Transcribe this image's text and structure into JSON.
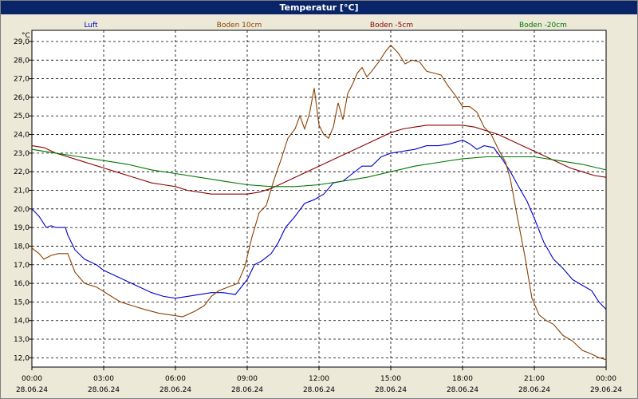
{
  "window": {
    "title": "Temperatur [°C]"
  },
  "chart_data": {
    "type": "line",
    "title": "Temperatur [°C]",
    "ylabel": "°C",
    "xlabel": "",
    "ylim": [
      11.5,
      29.6
    ],
    "xlim": [
      0,
      24
    ],
    "grid": true,
    "legend_position": "top",
    "y_ticks": [
      "29,0",
      "28,0",
      "27,0",
      "26,0",
      "25,0",
      "24,0",
      "23,0",
      "22,0",
      "21,0",
      "20,0",
      "19,0",
      "18,0",
      "17,0",
      "16,0",
      "15,0",
      "14,0",
      "13,0",
      "12,0"
    ],
    "y_tick_values": [
      29,
      28,
      27,
      26,
      25,
      24,
      23,
      22,
      21,
      20,
      19,
      18,
      17,
      16,
      15,
      14,
      13,
      12
    ],
    "x_ticks": [
      {
        "time": "00:00",
        "date": "28.06.24",
        "h": 0
      },
      {
        "time": "03:00",
        "date": "28.06.24",
        "h": 3
      },
      {
        "time": "06:00",
        "date": "28.06.24",
        "h": 6
      },
      {
        "time": "09:00",
        "date": "28.06.24",
        "h": 9
      },
      {
        "time": "12:00",
        "date": "28.06.24",
        "h": 12
      },
      {
        "time": "15:00",
        "date": "28.06.24",
        "h": 15
      },
      {
        "time": "18:00",
        "date": "28.06.24",
        "h": 18
      },
      {
        "time": "21:00",
        "date": "28.06.24",
        "h": 21
      },
      {
        "time": "00:00",
        "date": "29.06.24",
        "h": 24
      }
    ],
    "series": [
      {
        "name": "Luft",
        "color": "#0000cc",
        "points": [
          [
            0,
            20.0
          ],
          [
            0.3,
            19.6
          ],
          [
            0.6,
            19.0
          ],
          [
            0.8,
            19.1
          ],
          [
            1.0,
            19.0
          ],
          [
            1.4,
            19.0
          ],
          [
            1.5,
            18.6
          ],
          [
            1.8,
            17.8
          ],
          [
            2.2,
            17.3
          ],
          [
            2.7,
            17.0
          ],
          [
            3.0,
            16.7
          ],
          [
            3.5,
            16.4
          ],
          [
            4.0,
            16.1
          ],
          [
            4.5,
            15.8
          ],
          [
            5.0,
            15.5
          ],
          [
            5.5,
            15.3
          ],
          [
            6.0,
            15.2
          ],
          [
            6.5,
            15.3
          ],
          [
            7.0,
            15.4
          ],
          [
            7.5,
            15.5
          ],
          [
            8.0,
            15.5
          ],
          [
            8.5,
            15.4
          ],
          [
            9.0,
            16.2
          ],
          [
            9.3,
            17.0
          ],
          [
            9.6,
            17.2
          ],
          [
            10.0,
            17.6
          ],
          [
            10.3,
            18.2
          ],
          [
            10.6,
            19.0
          ],
          [
            11.0,
            19.6
          ],
          [
            11.4,
            20.3
          ],
          [
            11.8,
            20.5
          ],
          [
            12.2,
            20.8
          ],
          [
            12.6,
            21.4
          ],
          [
            13.0,
            21.5
          ],
          [
            13.4,
            21.9
          ],
          [
            13.8,
            22.3
          ],
          [
            14.2,
            22.3
          ],
          [
            14.6,
            22.8
          ],
          [
            15.0,
            23.0
          ],
          [
            15.5,
            23.1
          ],
          [
            16.0,
            23.2
          ],
          [
            16.5,
            23.4
          ],
          [
            17.0,
            23.4
          ],
          [
            17.5,
            23.5
          ],
          [
            18.0,
            23.7
          ],
          [
            18.3,
            23.5
          ],
          [
            18.6,
            23.2
          ],
          [
            18.9,
            23.4
          ],
          [
            19.3,
            23.3
          ],
          [
            19.7,
            22.6
          ],
          [
            20.0,
            22.0
          ],
          [
            20.3,
            21.3
          ],
          [
            20.7,
            20.4
          ],
          [
            21.0,
            19.5
          ],
          [
            21.4,
            18.2
          ],
          [
            21.8,
            17.3
          ],
          [
            22.2,
            16.8
          ],
          [
            22.6,
            16.2
          ],
          [
            23.0,
            15.9
          ],
          [
            23.4,
            15.6
          ],
          [
            23.7,
            15.0
          ],
          [
            24.0,
            14.6
          ]
        ]
      },
      {
        "name": "Boden 10cm",
        "color": "#8b4000",
        "points": [
          [
            0,
            17.9
          ],
          [
            0.3,
            17.6
          ],
          [
            0.5,
            17.3
          ],
          [
            0.8,
            17.5
          ],
          [
            1.1,
            17.6
          ],
          [
            1.5,
            17.6
          ],
          [
            1.8,
            16.6
          ],
          [
            2.2,
            16.0
          ],
          [
            2.7,
            15.8
          ],
          [
            3.2,
            15.4
          ],
          [
            3.7,
            15.0
          ],
          [
            4.2,
            14.8
          ],
          [
            4.7,
            14.6
          ],
          [
            5.3,
            14.4
          ],
          [
            5.8,
            14.3
          ],
          [
            6.3,
            14.2
          ],
          [
            6.8,
            14.5
          ],
          [
            7.2,
            14.8
          ],
          [
            7.5,
            15.3
          ],
          [
            7.8,
            15.6
          ],
          [
            8.2,
            15.8
          ],
          [
            8.6,
            16.0
          ],
          [
            8.9,
            16.9
          ],
          [
            9.2,
            18.5
          ],
          [
            9.5,
            19.8
          ],
          [
            9.8,
            20.2
          ],
          [
            10.1,
            21.5
          ],
          [
            10.4,
            22.6
          ],
          [
            10.7,
            23.8
          ],
          [
            11.0,
            24.3
          ],
          [
            11.2,
            25.0
          ],
          [
            11.4,
            24.3
          ],
          [
            11.6,
            25.1
          ],
          [
            11.8,
            26.5
          ],
          [
            12.0,
            24.5
          ],
          [
            12.2,
            24.0
          ],
          [
            12.4,
            23.8
          ],
          [
            12.6,
            24.4
          ],
          [
            12.8,
            25.7
          ],
          [
            13.0,
            24.8
          ],
          [
            13.2,
            26.2
          ],
          [
            13.4,
            26.7
          ],
          [
            13.6,
            27.3
          ],
          [
            13.8,
            27.6
          ],
          [
            14.0,
            27.1
          ],
          [
            14.2,
            27.4
          ],
          [
            14.5,
            27.9
          ],
          [
            14.8,
            28.5
          ],
          [
            15.0,
            28.8
          ],
          [
            15.3,
            28.4
          ],
          [
            15.6,
            27.8
          ],
          [
            15.9,
            28.0
          ],
          [
            16.2,
            27.9
          ],
          [
            16.5,
            27.4
          ],
          [
            16.8,
            27.3
          ],
          [
            17.1,
            27.2
          ],
          [
            17.4,
            26.6
          ],
          [
            17.7,
            26.1
          ],
          [
            18.0,
            25.5
          ],
          [
            18.3,
            25.5
          ],
          [
            18.6,
            25.2
          ],
          [
            18.9,
            24.4
          ],
          [
            19.2,
            24.0
          ],
          [
            19.5,
            23.2
          ],
          [
            19.8,
            22.5
          ],
          [
            20.0,
            21.6
          ],
          [
            20.3,
            19.5
          ],
          [
            20.6,
            17.5
          ],
          [
            20.9,
            15.2
          ],
          [
            21.2,
            14.3
          ],
          [
            21.5,
            14.0
          ],
          [
            21.8,
            13.8
          ],
          [
            22.2,
            13.2
          ],
          [
            22.6,
            12.9
          ],
          [
            23.0,
            12.4
          ],
          [
            23.4,
            12.2
          ],
          [
            23.7,
            12.0
          ],
          [
            24.0,
            11.9
          ]
        ]
      },
      {
        "name": "Boden -5cm",
        "color": "#8b0000",
        "points": [
          [
            0,
            23.4
          ],
          [
            0.5,
            23.3
          ],
          [
            1.0,
            23.0
          ],
          [
            1.5,
            22.8
          ],
          [
            2.0,
            22.6
          ],
          [
            2.5,
            22.4
          ],
          [
            3.0,
            22.2
          ],
          [
            3.5,
            22.0
          ],
          [
            4.0,
            21.8
          ],
          [
            4.5,
            21.6
          ],
          [
            5.0,
            21.4
          ],
          [
            5.5,
            21.3
          ],
          [
            6.0,
            21.2
          ],
          [
            6.5,
            21.0
          ],
          [
            7.0,
            20.9
          ],
          [
            7.5,
            20.8
          ],
          [
            8.0,
            20.8
          ],
          [
            8.5,
            20.8
          ],
          [
            9.0,
            20.8
          ],
          [
            9.5,
            20.9
          ],
          [
            10.0,
            21.1
          ],
          [
            10.5,
            21.4
          ],
          [
            11.0,
            21.7
          ],
          [
            11.5,
            22.0
          ],
          [
            12.0,
            22.3
          ],
          [
            12.5,
            22.6
          ],
          [
            13.0,
            22.9
          ],
          [
            13.5,
            23.2
          ],
          [
            14.0,
            23.5
          ],
          [
            14.5,
            23.8
          ],
          [
            15.0,
            24.1
          ],
          [
            15.5,
            24.3
          ],
          [
            16.0,
            24.4
          ],
          [
            16.5,
            24.5
          ],
          [
            17.0,
            24.5
          ],
          [
            17.5,
            24.5
          ],
          [
            18.0,
            24.5
          ],
          [
            18.5,
            24.4
          ],
          [
            19.0,
            24.2
          ],
          [
            19.5,
            24.0
          ],
          [
            20.0,
            23.7
          ],
          [
            20.5,
            23.4
          ],
          [
            21.0,
            23.1
          ],
          [
            21.5,
            22.8
          ],
          [
            22.0,
            22.5
          ],
          [
            22.5,
            22.2
          ],
          [
            23.0,
            22.0
          ],
          [
            23.5,
            21.8
          ],
          [
            24.0,
            21.7
          ]
        ]
      },
      {
        "name": "Boden -20cm",
        "color": "#007700",
        "points": [
          [
            0,
            23.2
          ],
          [
            1.0,
            23.0
          ],
          [
            2.0,
            22.8
          ],
          [
            3.0,
            22.6
          ],
          [
            4.0,
            22.4
          ],
          [
            5.0,
            22.1
          ],
          [
            6.0,
            21.9
          ],
          [
            7.0,
            21.7
          ],
          [
            8.0,
            21.5
          ],
          [
            9.0,
            21.3
          ],
          [
            10.0,
            21.2
          ],
          [
            11.0,
            21.2
          ],
          [
            12.0,
            21.3
          ],
          [
            13.0,
            21.5
          ],
          [
            14.0,
            21.7
          ],
          [
            15.0,
            22.0
          ],
          [
            16.0,
            22.3
          ],
          [
            17.0,
            22.5
          ],
          [
            18.0,
            22.7
          ],
          [
            19.0,
            22.8
          ],
          [
            20.0,
            22.8
          ],
          [
            21.0,
            22.8
          ],
          [
            22.0,
            22.6
          ],
          [
            23.0,
            22.4
          ],
          [
            24.0,
            22.1
          ]
        ]
      }
    ]
  }
}
